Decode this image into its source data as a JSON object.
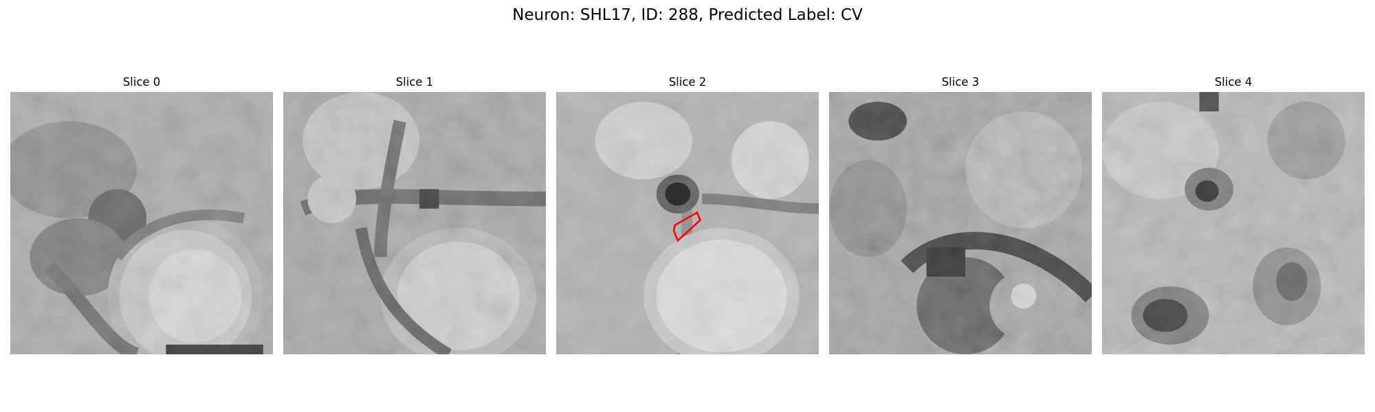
{
  "figure": {
    "title": "Neuron: SHL17, ID: 288, Predicted Label: CV"
  },
  "panels": [
    {
      "title": "Slice 0"
    },
    {
      "title": "Slice 1"
    },
    {
      "title": "Slice 2"
    },
    {
      "title": "Slice 3"
    },
    {
      "title": "Slice 4"
    }
  ],
  "mask_outline": {
    "panel_index": 2,
    "color": "#ff0000"
  }
}
